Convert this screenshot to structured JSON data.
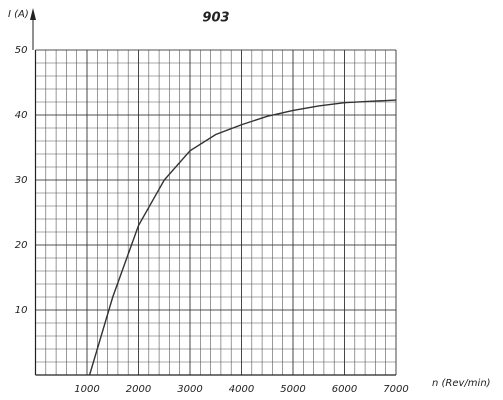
{
  "chart_data": {
    "type": "line",
    "title": "903",
    "y_label": "I (A)",
    "x_label": "n (Rev/min)",
    "x": [
      1050,
      1500,
      2000,
      2500,
      3000,
      3500,
      4000,
      4500,
      5000,
      5500,
      6000,
      6500,
      7000
    ],
    "series": [
      {
        "name": "I",
        "color": "#333333",
        "values": [
          0,
          12,
          23,
          30,
          34.5,
          37,
          38.5,
          39.8,
          40.7,
          41.4,
          41.9,
          42.1,
          42.3
        ]
      }
    ],
    "xlim": [
      0,
      7000
    ],
    "xticks": [
      1000,
      2000,
      3000,
      4000,
      5000,
      6000,
      7000
    ],
    "ylim": [
      0,
      50
    ],
    "yticks": [
      10,
      20,
      30,
      40,
      50
    ],
    "grid": true
  }
}
